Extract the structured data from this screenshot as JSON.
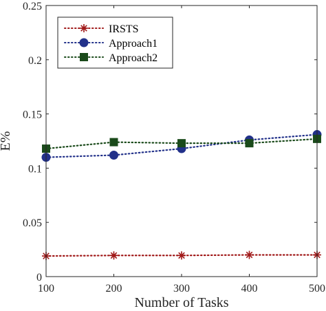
{
  "chart_data": {
    "type": "line",
    "xlabel": "Number of Tasks",
    "ylabel": "E%",
    "x": [
      100,
      200,
      300,
      400,
      500
    ],
    "xlim": [
      100,
      500
    ],
    "ylim": [
      0,
      0.25
    ],
    "x_ticks": [
      "100",
      "200",
      "300",
      "400",
      "500"
    ],
    "y_ticks": [
      "0",
      "0.05",
      "0.1",
      "0.15",
      "0.2",
      "0.25"
    ],
    "grid": false,
    "legend_position": "top-left",
    "series": [
      {
        "name": "IRSTS",
        "values": [
          0.019,
          0.0195,
          0.0195,
          0.02,
          0.02
        ],
        "color": "#a01818",
        "marker": "asterisk",
        "line_style": "dotted"
      },
      {
        "name": "Approach1",
        "values": [
          0.11,
          0.112,
          0.118,
          0.126,
          0.131
        ],
        "color": "#22318a",
        "marker": "circle",
        "line_style": "dotted"
      },
      {
        "name": "Approach2",
        "values": [
          0.118,
          0.124,
          0.123,
          0.123,
          0.127
        ],
        "color": "#1a4a1a",
        "marker": "square",
        "line_style": "dotted"
      }
    ]
  }
}
